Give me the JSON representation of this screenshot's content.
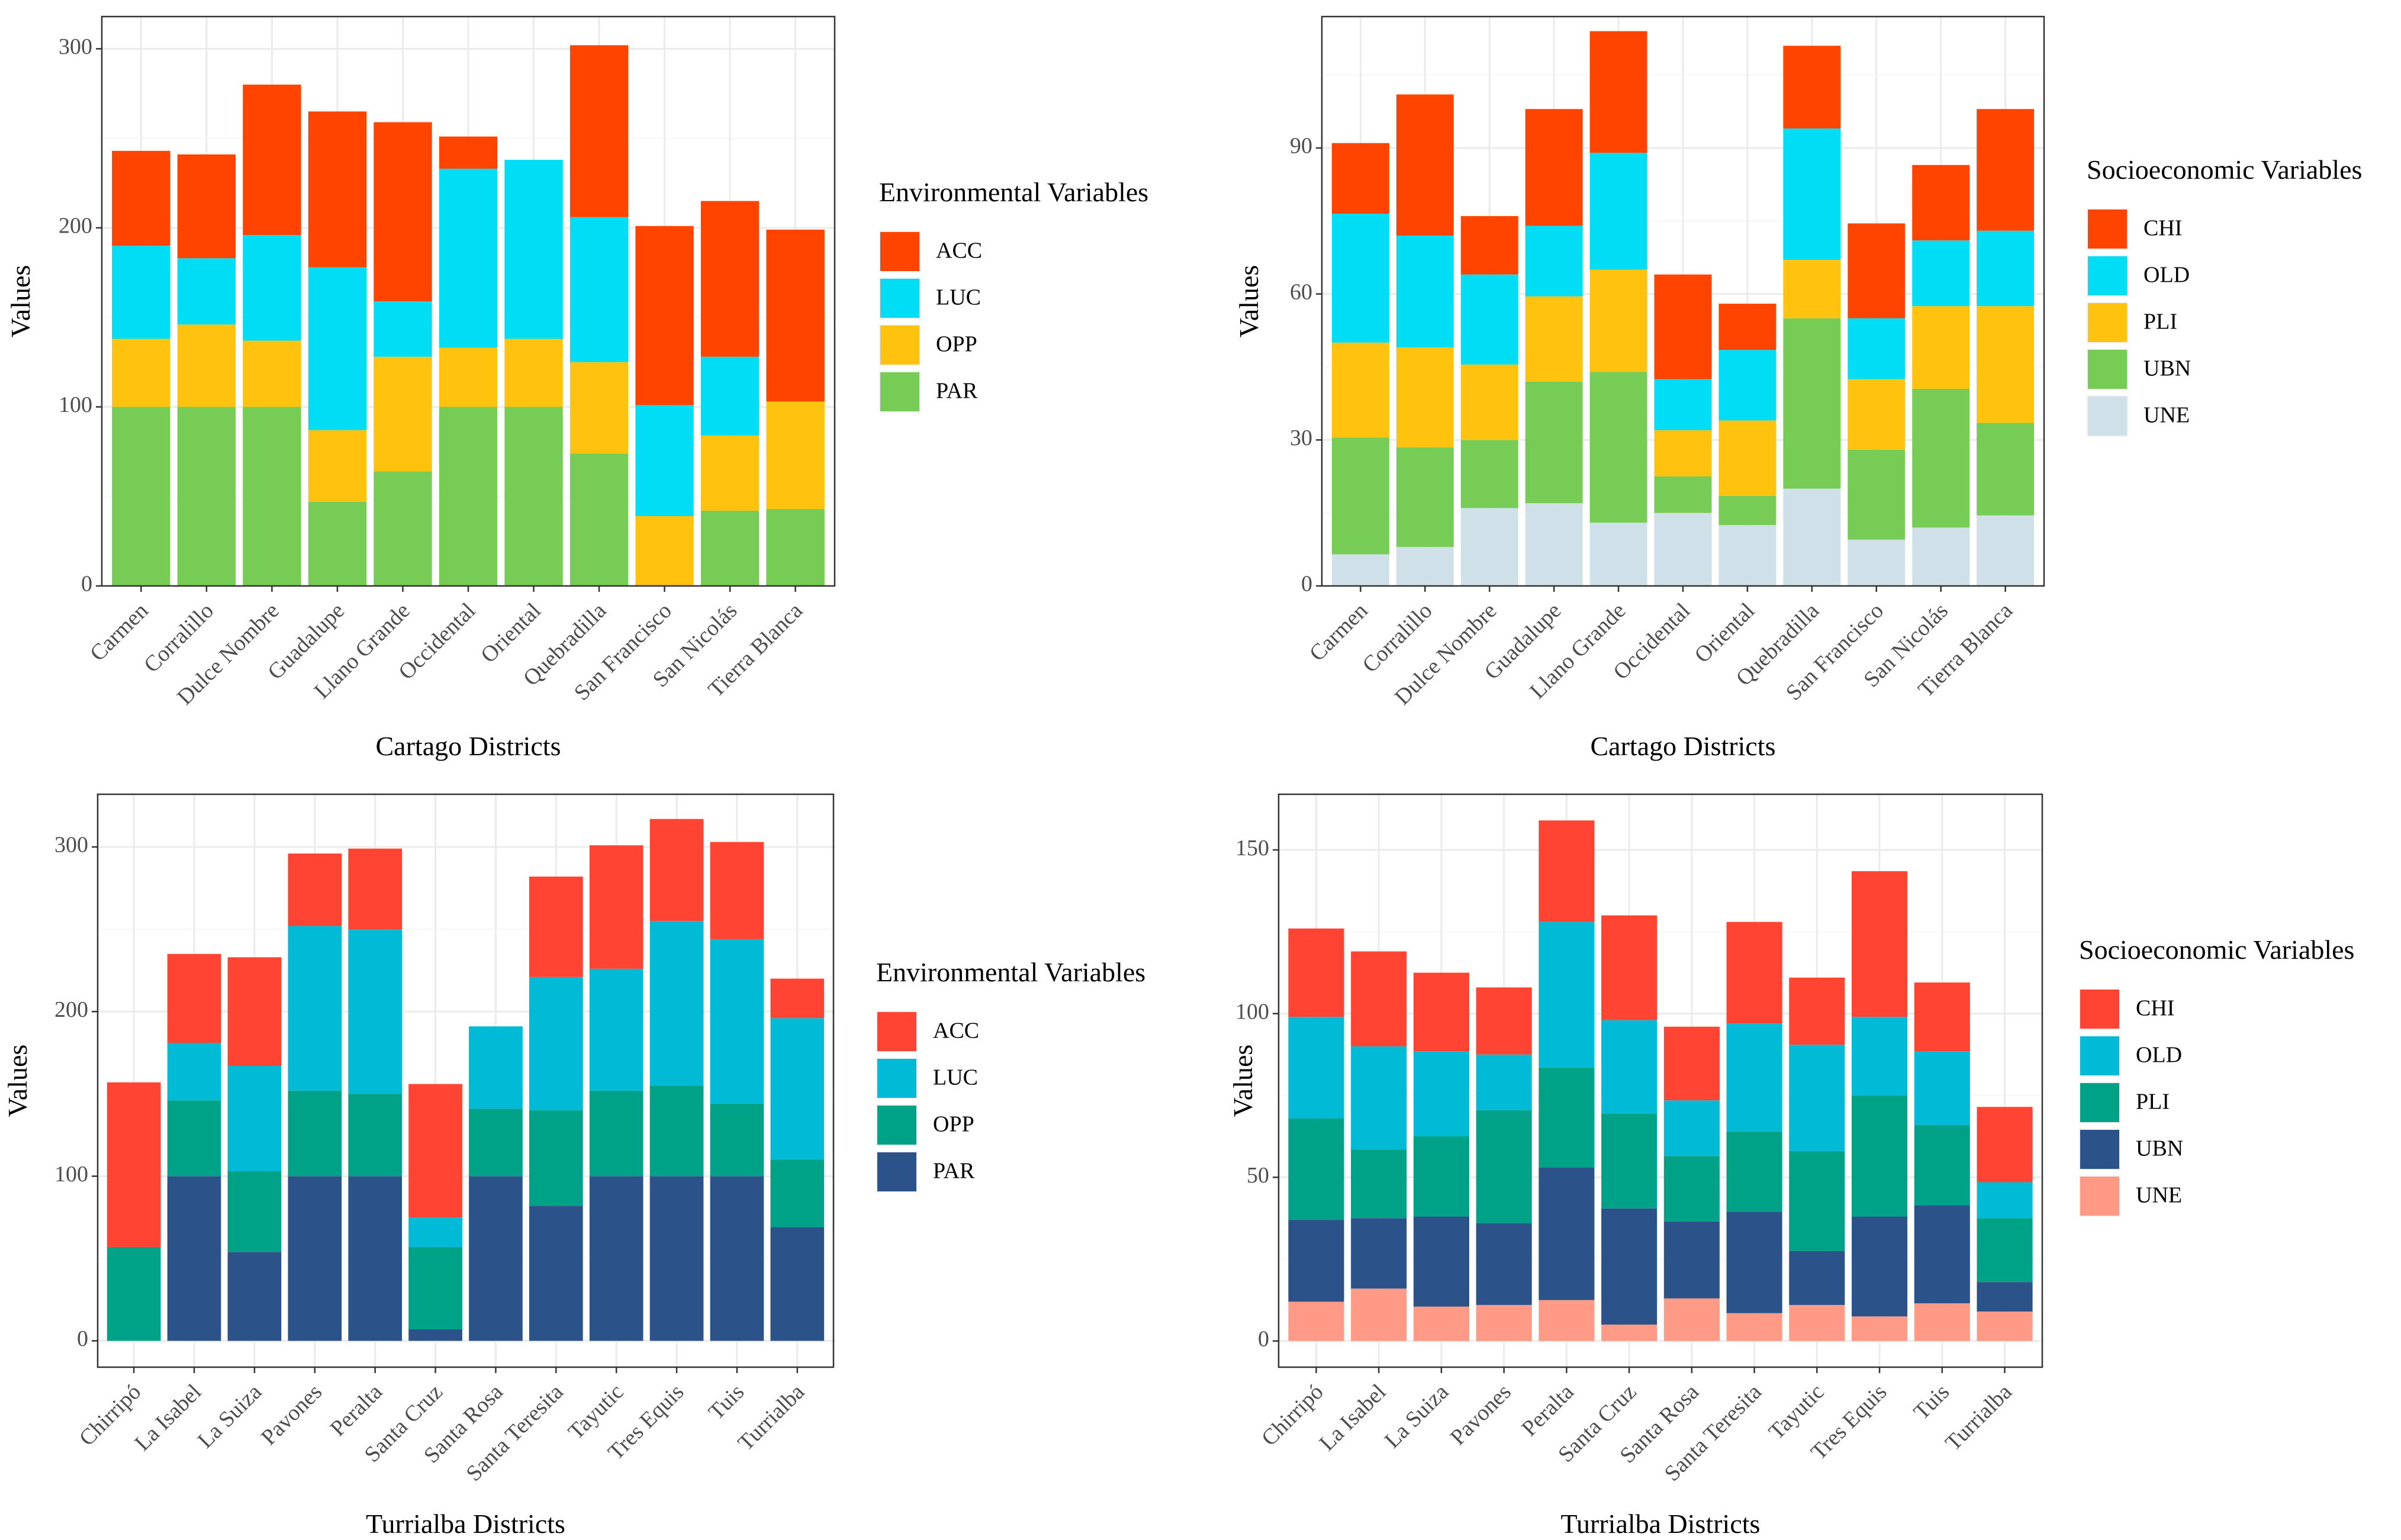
{
  "chart_data": [
    {
      "type": "bar",
      "stacked": true,
      "xlabel": "Cartago Districts",
      "ylabel": "Values",
      "ylim": [
        0,
        318
      ],
      "yticks": [
        0,
        100,
        200,
        300
      ],
      "legend_title": "Environmental Variables",
      "categories": [
        "Carmen",
        "Corralillo",
        "Dulce Nombre",
        "Guadalupe",
        "Llano Grande",
        "Occidental",
        "Oriental",
        "Quebradilla",
        "San Francisco",
        "San Nicolás",
        "Tierra Blanca"
      ],
      "series": [
        {
          "name": "PAR",
          "color": "#77cc55",
          "values": [
            100,
            100,
            100,
            47,
            64,
            100,
            100,
            74,
            0,
            42,
            43
          ]
        },
        {
          "name": "OPP",
          "color": "#ffc20e",
          "values": [
            38,
            46,
            37,
            40,
            64,
            33,
            38,
            51,
            39,
            42,
            60
          ]
        },
        {
          "name": "LUC",
          "color": "#00ddf5",
          "values": [
            52,
            37,
            59,
            91,
            31,
            100,
            100,
            81,
            62,
            44,
            0
          ]
        },
        {
          "name": "ACC",
          "color": "#ff4400",
          "values": [
            53,
            58,
            84,
            87,
            100,
            18,
            0,
            96,
            100,
            87,
            96
          ]
        }
      ],
      "legend_order": [
        "ACC",
        "LUC",
        "OPP",
        "PAR"
      ]
    },
    {
      "type": "bar",
      "stacked": true,
      "xlabel": "Cartago Districts",
      "ylabel": "Values",
      "ylim": [
        0,
        117
      ],
      "yticks": [
        0,
        30,
        60,
        90
      ],
      "legend_title": "Socioeconomic Variables",
      "categories": [
        "Carmen",
        "Corralillo",
        "Dulce Nombre",
        "Guadalupe",
        "Llano Grande",
        "Occidental",
        "Oriental",
        "Quebradilla",
        "San Francisco",
        "San Nicolás",
        "Tierra Blanca"
      ],
      "series": [
        {
          "name": "UNE",
          "color": "#cfe0e8",
          "values": [
            6.5,
            8,
            16,
            17,
            13,
            15,
            12.5,
            20,
            9.5,
            12,
            14.5
          ]
        },
        {
          "name": "UBN",
          "color": "#77cc55",
          "values": [
            24,
            20.5,
            14,
            25,
            31,
            7.5,
            6,
            35,
            18.5,
            28.5,
            19
          ]
        },
        {
          "name": "PLI",
          "color": "#ffc20e",
          "values": [
            19.5,
            20.5,
            15.5,
            17.5,
            21,
            9.5,
            15.5,
            12,
            14.5,
            17,
            24
          ]
        },
        {
          "name": "OLD",
          "color": "#00ddf5",
          "values": [
            26.5,
            23,
            18.5,
            14.5,
            24,
            10.5,
            14.5,
            27,
            12.5,
            13.5,
            15.5
          ]
        },
        {
          "name": "CHI",
          "color": "#ff4400",
          "values": [
            14.5,
            29,
            12,
            24,
            25,
            21.5,
            9.5,
            17,
            19.5,
            15.5,
            25
          ]
        }
      ],
      "legend_order": [
        "CHI",
        "OLD",
        "PLI",
        "UBN",
        "UNE"
      ]
    },
    {
      "type": "bar",
      "stacked": true,
      "xlabel": "Turrialba Districts",
      "ylabel": "Values",
      "ylim": [
        -16,
        332
      ],
      "yticks": [
        0,
        100,
        200,
        300
      ],
      "legend_title": "Environmental Variables",
      "categories": [
        "Chirripó",
        "La Isabel",
        "La Suiza",
        "Pavones",
        "Peralta",
        "Santa Cruz",
        "Santa Rosa",
        "Santa Teresita",
        "Tayutic",
        "Tres Equis",
        "Tuis",
        "Turrialba"
      ],
      "series": [
        {
          "name": "PAR",
          "color": "#2b5389",
          "values": [
            0,
            100,
            54,
            100,
            100,
            7,
            100,
            82,
            100,
            100,
            100,
            69
          ]
        },
        {
          "name": "OPP",
          "color": "#00a287",
          "values": [
            57,
            46,
            49,
            52,
            50,
            50,
            41,
            58,
            52,
            55,
            44,
            41
          ]
        },
        {
          "name": "LUC",
          "color": "#00bad6",
          "values": [
            0,
            35,
            64,
            100,
            100,
            18,
            50,
            81,
            74,
            100,
            100,
            86
          ]
        },
        {
          "name": "ACC",
          "color": "#ff4433",
          "values": [
            100,
            54,
            66,
            44,
            49,
            81,
            0,
            61,
            75,
            62,
            59,
            24
          ]
        }
      ],
      "legend_order": [
        "ACC",
        "LUC",
        "OPP",
        "PAR"
      ]
    },
    {
      "type": "bar",
      "stacked": true,
      "xlabel": "Turrialba Districts",
      "ylabel": "Values",
      "ylim": [
        -8,
        167
      ],
      "yticks": [
        0,
        50,
        100,
        150
      ],
      "legend_title": "Socioeconomic Variables",
      "categories": [
        "Chirripó",
        "La Isabel",
        "La Suiza",
        "Pavones",
        "Peralta",
        "Santa Cruz",
        "Santa Rosa",
        "Santa Teresita",
        "Tayutic",
        "Tres Equis",
        "Tuis",
        "Turrialba"
      ],
      "series": [
        {
          "name": "UNE",
          "color": "#fe9a85",
          "values": [
            12,
            16,
            10.5,
            11,
            12.5,
            5,
            13,
            8.5,
            11,
            7.5,
            11.5,
            9
          ]
        },
        {
          "name": "UBN",
          "color": "#2b5389",
          "values": [
            25,
            21.5,
            27.5,
            25,
            40.5,
            35.5,
            23.5,
            31,
            16.5,
            30.5,
            30,
            9
          ]
        },
        {
          "name": "PLI",
          "color": "#00a287",
          "values": [
            31,
            21,
            24.5,
            34.5,
            30.5,
            29,
            20,
            24.5,
            30.5,
            37,
            24.5,
            19.5
          ]
        },
        {
          "name": "OLD",
          "color": "#00bad6",
          "values": [
            31,
            31.5,
            26,
            17,
            44.5,
            28.5,
            17,
            33,
            32.5,
            24,
            22.5,
            11
          ]
        },
        {
          "name": "CHI",
          "color": "#ff4433",
          "values": [
            27,
            29,
            24,
            20.5,
            31,
            32,
            22.5,
            31,
            20.5,
            44.5,
            21,
            23
          ]
        }
      ],
      "legend_order": [
        "CHI",
        "OLD",
        "PLI",
        "UBN",
        "UNE"
      ]
    }
  ]
}
